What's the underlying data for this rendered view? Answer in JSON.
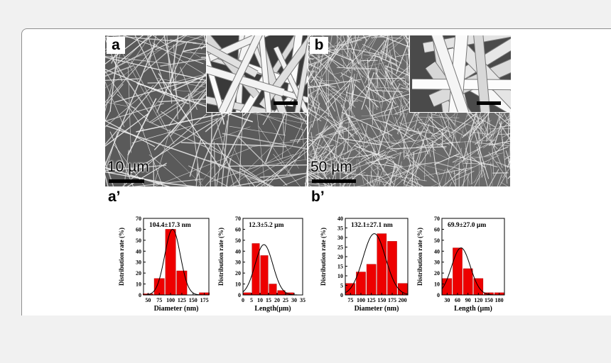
{
  "figure": {
    "panels": [
      {
        "label": "a",
        "scale_text": "10 µm",
        "description_color": "#5a5a5a"
      },
      {
        "label": "b",
        "scale_text": "50 µm",
        "description_color": "#6a6a6a"
      }
    ],
    "histogram_labels": [
      "a’",
      "b’"
    ]
  },
  "chart_data": [
    {
      "type": "bar",
      "annotation": "104.4±17.3 nm",
      "xlabel": "Diameter (nm)",
      "ylabel": "Distribution rate (%)",
      "x": [
        50,
        75,
        100,
        125,
        150,
        175
      ],
      "values": [
        1,
        15,
        60,
        22,
        0,
        2
      ],
      "xlim": [
        40,
        185
      ],
      "ylim": [
        0,
        70
      ],
      "xticks": [
        50,
        75,
        100,
        125,
        150,
        175
      ],
      "yticks": [
        0,
        10,
        20,
        30,
        40,
        50,
        60,
        70
      ],
      "fit": {
        "mean": 104.4,
        "sd": 17.3,
        "peak": 60
      },
      "bar_color": "#ee0000"
    },
    {
      "type": "bar",
      "annotation": "12.3±5.2 µm",
      "xlabel": "Length(µm)",
      "ylabel": "Distribution rate (%)",
      "x": [
        2.5,
        7.5,
        12.5,
        17.5,
        22.5,
        27.5
      ],
      "values": [
        2,
        47,
        36,
        10,
        4,
        2
      ],
      "xlim": [
        0,
        35
      ],
      "ylim": [
        0,
        70
      ],
      "xticks": [
        0,
        5,
        10,
        15,
        20,
        25,
        30,
        35
      ],
      "yticks": [
        0,
        10,
        20,
        30,
        40,
        50,
        60,
        70
      ],
      "fit": {
        "mean": 12.3,
        "sd": 5.2,
        "peak": 46
      },
      "bar_color": "#ee0000"
    },
    {
      "type": "bar",
      "annotation": "132.1±27.1 nm",
      "xlabel": "Diameter (nm)",
      "ylabel": "Distribution rate (%)",
      "x": [
        75,
        100,
        125,
        150,
        175,
        200
      ],
      "values": [
        6,
        12,
        16,
        32,
        28,
        6
      ],
      "xlim": [
        62.5,
        212.5
      ],
      "ylim": [
        0,
        40
      ],
      "xticks": [
        75,
        100,
        125,
        150,
        175,
        200
      ],
      "yticks": [
        0,
        5,
        10,
        15,
        20,
        25,
        30,
        35,
        40
      ],
      "fit": {
        "mean": 132.1,
        "sd": 27.1,
        "peak": 32
      },
      "bar_color": "#ee0000"
    },
    {
      "type": "bar",
      "annotation": "69.9±27.0 µm",
      "xlabel": "Length (µm)",
      "ylabel": "Distribution rate (%)",
      "x": [
        30,
        60,
        90,
        120,
        150,
        180
      ],
      "values": [
        15,
        43,
        24,
        15,
        2,
        2
      ],
      "xlim": [
        15,
        195
      ],
      "ylim": [
        0,
        70
      ],
      "xticks": [
        30,
        60,
        90,
        120,
        150,
        180
      ],
      "yticks": [
        0,
        10,
        20,
        30,
        40,
        50,
        60,
        70
      ],
      "fit": {
        "mean": 69.9,
        "sd": 27.0,
        "peak": 43
      },
      "bar_color": "#ee0000"
    }
  ]
}
